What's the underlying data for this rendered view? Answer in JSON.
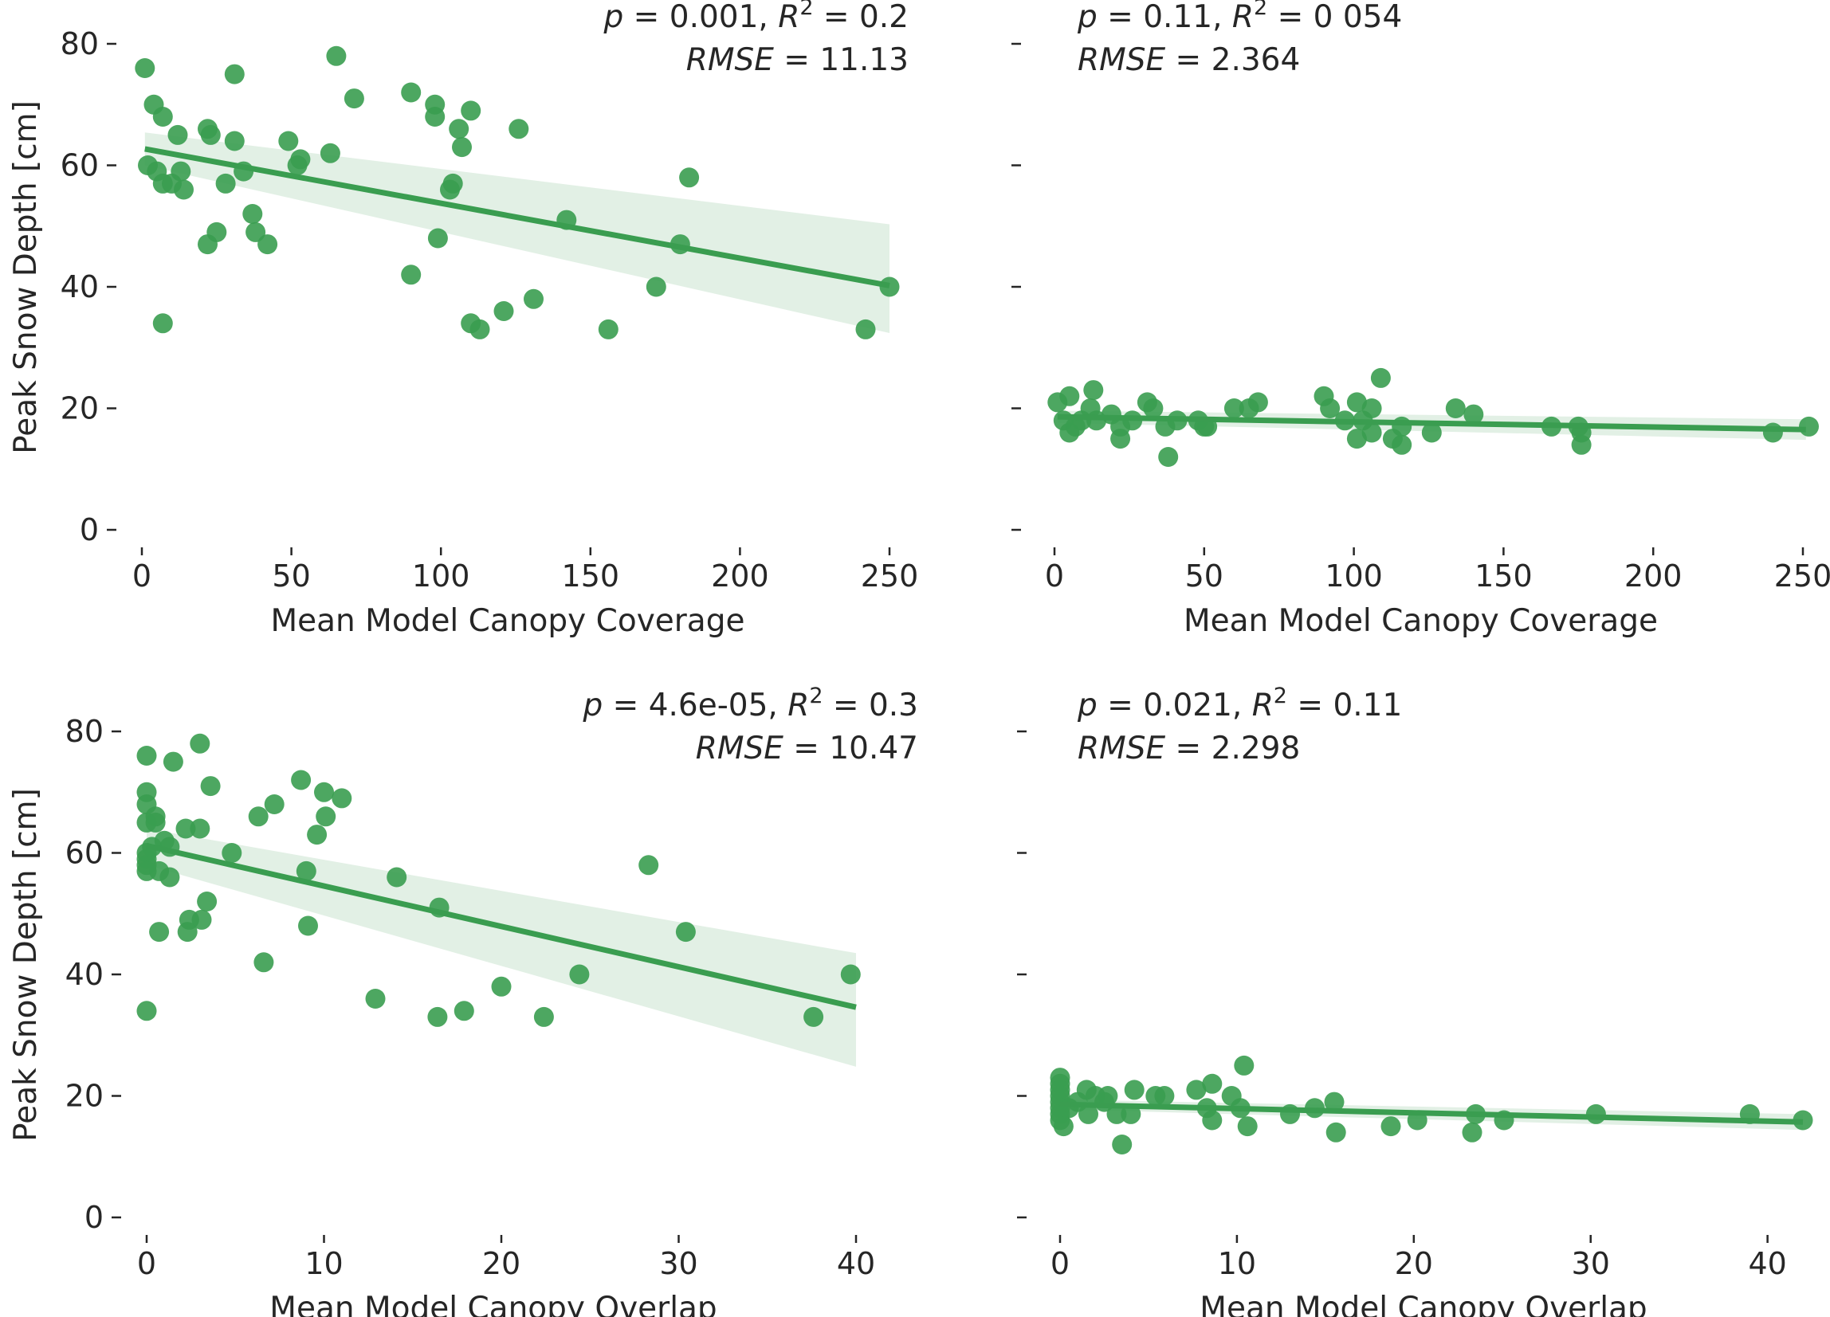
{
  "chart_data": [
    {
      "type": "scatter",
      "panel": "top-left",
      "xlabel": "Mean Model Canopy Coverage",
      "ylabel": "Peak Snow Depth [cm]",
      "xlim": [
        -5,
        255
      ],
      "ylim": [
        0,
        82
      ],
      "xticks": [
        "0",
        "50",
        "100",
        "150",
        "200",
        "250"
      ],
      "yticks": [
        "0",
        "20",
        "40",
        "60",
        "80"
      ],
      "color": "#3a9d50",
      "annotation": {
        "p": "0.001",
        "r2": "0.2",
        "rmse": "11.13",
        "align": "right"
      },
      "regression": {
        "x": [
          1,
          250
        ],
        "y": [
          62.7,
          40.2
        ],
        "ci_upper": [
          65.4,
          50.3
        ],
        "ci_lower": [
          60.0,
          32.4
        ]
      },
      "points": [
        [
          1,
          76
        ],
        [
          2,
          60
        ],
        [
          4,
          70
        ],
        [
          5,
          59
        ],
        [
          7,
          68
        ],
        [
          7,
          57
        ],
        [
          7,
          34
        ],
        [
          10,
          57
        ],
        [
          12,
          65
        ],
        [
          13,
          59
        ],
        [
          14,
          56
        ],
        [
          22,
          66
        ],
        [
          22,
          47
        ],
        [
          23,
          65
        ],
        [
          25,
          49
        ],
        [
          28,
          57
        ],
        [
          31,
          75
        ],
        [
          31,
          64
        ],
        [
          34,
          59
        ],
        [
          37,
          52
        ],
        [
          38,
          49
        ],
        [
          42,
          47
        ],
        [
          49,
          64
        ],
        [
          52,
          60
        ],
        [
          53,
          61
        ],
        [
          63,
          62
        ],
        [
          65,
          78
        ],
        [
          71,
          71
        ],
        [
          90,
          42
        ],
        [
          90,
          72
        ],
        [
          98,
          70
        ],
        [
          98,
          68
        ],
        [
          99,
          48
        ],
        [
          103,
          56
        ],
        [
          104,
          57
        ],
        [
          106,
          66
        ],
        [
          107,
          63
        ],
        [
          110,
          69
        ],
        [
          110,
          34
        ],
        [
          113,
          33
        ],
        [
          121,
          36
        ],
        [
          126,
          66
        ],
        [
          131,
          38
        ],
        [
          142,
          51
        ],
        [
          156,
          33
        ],
        [
          172,
          40
        ],
        [
          180,
          47
        ],
        [
          183,
          58
        ],
        [
          242,
          33
        ],
        [
          250,
          40
        ]
      ]
    },
    {
      "type": "scatter",
      "panel": "top-right",
      "xlabel": "Mean Model Canopy Coverage",
      "ylabel": "",
      "xlim": [
        -5,
        255
      ],
      "ylim": [
        0,
        82
      ],
      "xticks": [
        "0",
        "50",
        "100",
        "150",
        "200",
        "250"
      ],
      "yticks": [
        "",
        "",
        "",
        "",
        ""
      ],
      "color": "#3a9d50",
      "annotation": {
        "p": "0.11",
        "r2": "0 054",
        "rmse": "2.364",
        "align": "left"
      },
      "regression": {
        "x": [
          1,
          251
        ],
        "y": [
          18.6,
          16.5
        ],
        "ci_upper": [
          19.6,
          18.2
        ],
        "ci_lower": [
          17.6,
          14.8
        ]
      },
      "points": [
        [
          1,
          21
        ],
        [
          3,
          18
        ],
        [
          5,
          16
        ],
        [
          5,
          22
        ],
        [
          7,
          17
        ],
        [
          9,
          18
        ],
        [
          12,
          20
        ],
        [
          13,
          23
        ],
        [
          14,
          18
        ],
        [
          19,
          19
        ],
        [
          22,
          15
        ],
        [
          22,
          17
        ],
        [
          26,
          18
        ],
        [
          31,
          21
        ],
        [
          33,
          20
        ],
        [
          37,
          17
        ],
        [
          38,
          12
        ],
        [
          41,
          18
        ],
        [
          48,
          18
        ],
        [
          50,
          17
        ],
        [
          51,
          17
        ],
        [
          60,
          20
        ],
        [
          65,
          20
        ],
        [
          68,
          21
        ],
        [
          90,
          22
        ],
        [
          92,
          20
        ],
        [
          97,
          18
        ],
        [
          101,
          15
        ],
        [
          101,
          21
        ],
        [
          103,
          18
        ],
        [
          106,
          16
        ],
        [
          106,
          20
        ],
        [
          109,
          25
        ],
        [
          113,
          15
        ],
        [
          116,
          14
        ],
        [
          116,
          17
        ],
        [
          126,
          16
        ],
        [
          134,
          20
        ],
        [
          140,
          19
        ],
        [
          166,
          17
        ],
        [
          175,
          17
        ],
        [
          176,
          16
        ],
        [
          176,
          14
        ],
        [
          240,
          16
        ],
        [
          252,
          17
        ]
      ]
    },
    {
      "type": "scatter",
      "panel": "bottom-left",
      "xlabel": "Mean Model Canopy Overlap",
      "ylabel": "Peak Snow Depth [cm]",
      "xlim": [
        -1,
        41
      ],
      "ylim": [
        0,
        82
      ],
      "xticks": [
        "0",
        "10",
        "20",
        "30",
        "40"
      ],
      "yticks": [
        "0",
        "20",
        "40",
        "60",
        "80"
      ],
      "color": "#3a9d50",
      "annotation": {
        "p": "4.6e-05",
        "r2": "0.3",
        "rmse": "10.47",
        "align": "right"
      },
      "regression": {
        "x": [
          0,
          40
        ],
        "y": [
          61.2,
          34.6
        ],
        "ci_upper": [
          64.0,
          43.5
        ],
        "ci_lower": [
          58.0,
          24.8
        ]
      },
      "points": [
        [
          0,
          76
        ],
        [
          0,
          70
        ],
        [
          0,
          68
        ],
        [
          0,
          65
        ],
        [
          0,
          60
        ],
        [
          0,
          59
        ],
        [
          0,
          58
        ],
        [
          0,
          57
        ],
        [
          0,
          34
        ],
        [
          0.3,
          61
        ],
        [
          0.5,
          66
        ],
        [
          0.5,
          65
        ],
        [
          0.7,
          57
        ],
        [
          0.7,
          47
        ],
        [
          1.0,
          62
        ],
        [
          1.3,
          61
        ],
        [
          1.3,
          56
        ],
        [
          1.5,
          75
        ],
        [
          2.2,
          64
        ],
        [
          2.3,
          47
        ],
        [
          2.4,
          49
        ],
        [
          3.0,
          78
        ],
        [
          3.0,
          64
        ],
        [
          3.1,
          49
        ],
        [
          3.4,
          52
        ],
        [
          3.6,
          71
        ],
        [
          4.8,
          60
        ],
        [
          6.3,
          66
        ],
        [
          6.6,
          42
        ],
        [
          7.2,
          68
        ],
        [
          8.7,
          72
        ],
        [
          9.0,
          57
        ],
        [
          9.1,
          48
        ],
        [
          9.6,
          63
        ],
        [
          10.0,
          70
        ],
        [
          10.1,
          66
        ],
        [
          11.0,
          69
        ],
        [
          12.9,
          36
        ],
        [
          14.1,
          56
        ],
        [
          16.4,
          33
        ],
        [
          16.5,
          51
        ],
        [
          17.9,
          34
        ],
        [
          20.0,
          38
        ],
        [
          22.4,
          33
        ],
        [
          24.4,
          40
        ],
        [
          28.3,
          58
        ],
        [
          30.4,
          47
        ],
        [
          37.6,
          33
        ],
        [
          39.7,
          40
        ]
      ]
    },
    {
      "type": "scatter",
      "panel": "bottom-right",
      "xlabel": "Mean Model Canopy Overlap",
      "ylabel": "",
      "xlim": [
        -1,
        43
      ],
      "ylim": [
        0,
        82
      ],
      "xticks": [
        "0",
        "10",
        "20",
        "30",
        "40"
      ],
      "yticks": [
        "",
        "",
        "",
        "",
        ""
      ],
      "color": "#3a9d50",
      "annotation": {
        "p": "0.021",
        "r2": "0.11",
        "rmse": "2.298",
        "align": "left"
      },
      "regression": {
        "x": [
          0,
          42
        ],
        "y": [
          18.6,
          15.7
        ],
        "ci_upper": [
          19.4,
          17.0
        ],
        "ci_lower": [
          17.8,
          14.4
        ]
      },
      "points": [
        [
          0,
          23
        ],
        [
          0,
          22
        ],
        [
          0,
          21
        ],
        [
          0,
          20
        ],
        [
          0,
          19
        ],
        [
          0,
          18
        ],
        [
          0,
          17
        ],
        [
          0,
          16
        ],
        [
          0.2,
          15
        ],
        [
          0.5,
          18
        ],
        [
          1,
          19
        ],
        [
          1.5,
          21
        ],
        [
          1.6,
          17
        ],
        [
          2,
          20
        ],
        [
          2.5,
          19
        ],
        [
          2.7,
          20
        ],
        [
          3.2,
          17
        ],
        [
          3.5,
          12
        ],
        [
          4,
          17
        ],
        [
          4.2,
          21
        ],
        [
          5.4,
          20
        ],
        [
          5.9,
          20
        ],
        [
          7.7,
          21
        ],
        [
          8.3,
          18
        ],
        [
          8.6,
          16
        ],
        [
          8.6,
          22
        ],
        [
          9.7,
          20
        ],
        [
          10.2,
          18
        ],
        [
          10.4,
          25
        ],
        [
          10.6,
          15
        ],
        [
          13.0,
          17
        ],
        [
          14.4,
          18
        ],
        [
          15.5,
          19
        ],
        [
          15.6,
          14
        ],
        [
          18.7,
          15
        ],
        [
          20.2,
          16
        ],
        [
          23.3,
          14
        ],
        [
          23.5,
          17
        ],
        [
          25.1,
          16
        ],
        [
          30.3,
          17
        ],
        [
          39.0,
          17
        ],
        [
          42.0,
          16
        ]
      ]
    }
  ]
}
